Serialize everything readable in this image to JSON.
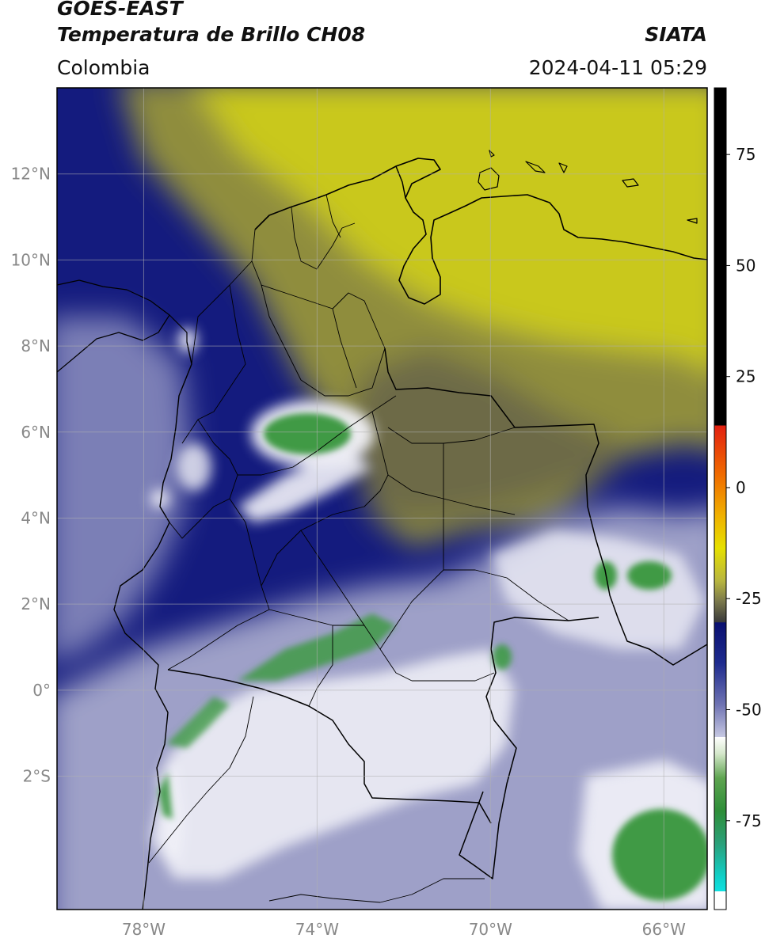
{
  "header": {
    "satellite": "GOES-EAST",
    "product": "Temperatura de Brillo CH08",
    "institution": "SIATA",
    "region": "Colombia",
    "timestamp": "2024-04-11 05:29"
  },
  "map": {
    "lon_range": [
      -80,
      -65
    ],
    "lat_range": [
      -5.1,
      14
    ],
    "lon_ticks": [
      {
        "value": -78,
        "label": "78°W"
      },
      {
        "value": -74,
        "label": "74°W"
      },
      {
        "value": -70,
        "label": "70°W"
      },
      {
        "value": -66,
        "label": "66°W"
      }
    ],
    "lat_ticks": [
      {
        "value": 12,
        "label": "12°N"
      },
      {
        "value": 10,
        "label": "10°N"
      },
      {
        "value": 8,
        "label": "8°N"
      },
      {
        "value": 6,
        "label": "6°N"
      },
      {
        "value": 4,
        "label": "4°N"
      },
      {
        "value": 2,
        "label": "2°N"
      },
      {
        "value": 0,
        "label": "0°"
      },
      {
        "value": -2,
        "label": "2°S"
      }
    ],
    "colors": {
      "yellow": "#c9c81a",
      "olive": "#8f8d3c",
      "grey": "#525050",
      "navy": "#141b7e",
      "lavender": "#9ea0c8",
      "white": "#f2f2f8",
      "green": "#3f9a45"
    }
  },
  "colorbar": {
    "range": [
      -95,
      90
    ],
    "ticks": [
      {
        "value": 75,
        "label": "75"
      },
      {
        "value": 50,
        "label": "50"
      },
      {
        "value": 25,
        "label": "25"
      },
      {
        "value": 0,
        "label": "0"
      },
      {
        "value": -25,
        "label": "-25"
      },
      {
        "value": -50,
        "label": "-50"
      },
      {
        "value": -75,
        "label": "-75"
      }
    ]
  }
}
